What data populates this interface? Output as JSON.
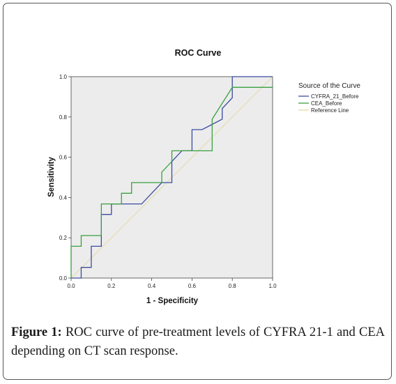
{
  "chart_data": {
    "type": "line",
    "title": "ROC Curve",
    "xlabel": "1 - Specificity",
    "ylabel": "Sensitivity",
    "xlim": [
      0,
      1
    ],
    "ylim": [
      0,
      1
    ],
    "x_ticks": [
      "0.0",
      "0.2",
      "0.4",
      "0.6",
      "0.8",
      "1.0"
    ],
    "y_ticks": [
      "0.0",
      "0.2",
      "0.4",
      "0.6",
      "0.8",
      "1.0"
    ],
    "grid": false,
    "legend_title": "Source of the Curve",
    "legend_position": "right",
    "series": [
      {
        "name": "CYFRA_21_Before",
        "color": "#3b4ba0",
        "points": [
          [
            0.0,
            0.0
          ],
          [
            0.05,
            0.0
          ],
          [
            0.05,
            0.053
          ],
          [
            0.1,
            0.053
          ],
          [
            0.1,
            0.158
          ],
          [
            0.15,
            0.158
          ],
          [
            0.15,
            0.316
          ],
          [
            0.2,
            0.316
          ],
          [
            0.2,
            0.368
          ],
          [
            0.35,
            0.368
          ],
          [
            0.4,
            0.421
          ],
          [
            0.45,
            0.474
          ],
          [
            0.5,
            0.474
          ],
          [
            0.5,
            0.579
          ],
          [
            0.55,
            0.632
          ],
          [
            0.6,
            0.632
          ],
          [
            0.6,
            0.737
          ],
          [
            0.65,
            0.737
          ],
          [
            0.7,
            0.763
          ],
          [
            0.75,
            0.789
          ],
          [
            0.75,
            0.842
          ],
          [
            0.8,
            0.895
          ],
          [
            0.8,
            1.0
          ],
          [
            1.0,
            1.0
          ]
        ]
      },
      {
        "name": "CEA_Before",
        "color": "#3aa040",
        "points": [
          [
            0.0,
            0.0
          ],
          [
            0.0,
            0.158
          ],
          [
            0.05,
            0.158
          ],
          [
            0.05,
            0.211
          ],
          [
            0.15,
            0.211
          ],
          [
            0.15,
            0.368
          ],
          [
            0.25,
            0.368
          ],
          [
            0.25,
            0.421
          ],
          [
            0.3,
            0.421
          ],
          [
            0.3,
            0.474
          ],
          [
            0.45,
            0.474
          ],
          [
            0.45,
            0.526
          ],
          [
            0.5,
            0.579
          ],
          [
            0.5,
            0.632
          ],
          [
            0.7,
            0.632
          ],
          [
            0.7,
            0.789
          ],
          [
            0.8,
            0.947
          ],
          [
            1.0,
            0.947
          ]
        ]
      },
      {
        "name": "Reference Line",
        "color": "#e3d9a8",
        "points": [
          [
            0.0,
            0.0
          ],
          [
            1.0,
            1.0
          ]
        ]
      }
    ]
  },
  "caption": {
    "label": "Figure 1:",
    "text": " ROC curve of pre-treatment levels of CYFRA 21-1 and CEA depending on CT scan response."
  }
}
